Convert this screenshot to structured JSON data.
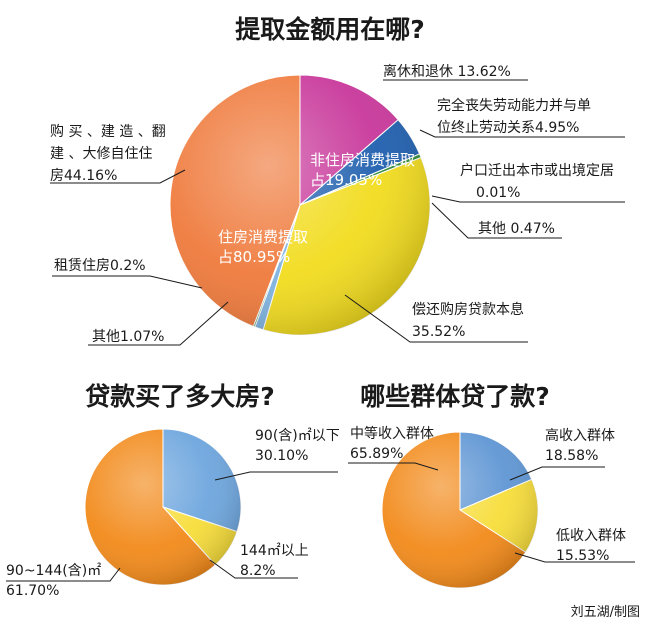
{
  "credit": "刘五湖/制图",
  "chart_data": [
    {
      "type": "pie",
      "title": "提取金额用在哪?",
      "groups": [
        {
          "label_lines": [
            "非住房消费提取",
            "占19.05%"
          ],
          "value": 19.05
        },
        {
          "label_lines": [
            "住房消费提取",
            "占80.95%"
          ],
          "value": 80.95
        }
      ],
      "slices": [
        {
          "label_lines": [
            "离休和退休 13.62%"
          ],
          "value": 13.62,
          "color": "#c8379a"
        },
        {
          "label_lines": [
            "完全丧失劳动能力并与单",
            "位终止劳动关系4.95%"
          ],
          "value": 4.95,
          "color": "#1f5fae"
        },
        {
          "label_lines": [
            "户口迁出本市或出境定居",
            "0.01%"
          ],
          "value": 0.01,
          "color": "#2a3a8f"
        },
        {
          "label_lines": [
            "其他 0.47%"
          ],
          "value": 0.47,
          "color": "#2e8b3a"
        },
        {
          "label_lines": [
            "偿还购房贷款本息",
            "35.52%"
          ],
          "value": 35.52,
          "color": "#f2dc1e"
        },
        {
          "label_lines": [
            "其他1.07%"
          ],
          "value": 1.07,
          "color": "#7fb3e0"
        },
        {
          "label_lines": [
            "租赁住房0.2%"
          ],
          "value": 0.2,
          "color": "#2e8b3a"
        },
        {
          "label_lines": [
            "购 买 、建 造 、翻",
            "建 、大修自住住",
            "房44.16%"
          ],
          "value": 44.16,
          "color": "#ef7a3c"
        }
      ]
    },
    {
      "type": "pie",
      "title": "贷款买了多大房?",
      "slices": [
        {
          "label_lines": [
            "90(含)㎡以下",
            "30.10%"
          ],
          "value": 30.1,
          "color": "#6ea6de"
        },
        {
          "label_lines": [
            "144㎡以上",
            "8.2%"
          ],
          "value": 8.2,
          "color": "#f7dd3a"
        },
        {
          "label_lines": [
            "90~144(含)㎡",
            "61.70%"
          ],
          "value": 61.7,
          "color": "#f28a1a"
        }
      ]
    },
    {
      "type": "pie",
      "title": "哪些群体贷了款?",
      "slices": [
        {
          "label_lines": [
            "高收入群体",
            "18.58%"
          ],
          "value": 18.58,
          "color": "#5f96d4"
        },
        {
          "label_lines": [
            "低收入群体",
            "15.53%"
          ],
          "value": 15.53,
          "color": "#f7dd3a"
        },
        {
          "label_lines": [
            "中等收入群体",
            "65.89%"
          ],
          "value": 65.89,
          "color": "#f28a1a"
        }
      ]
    }
  ]
}
